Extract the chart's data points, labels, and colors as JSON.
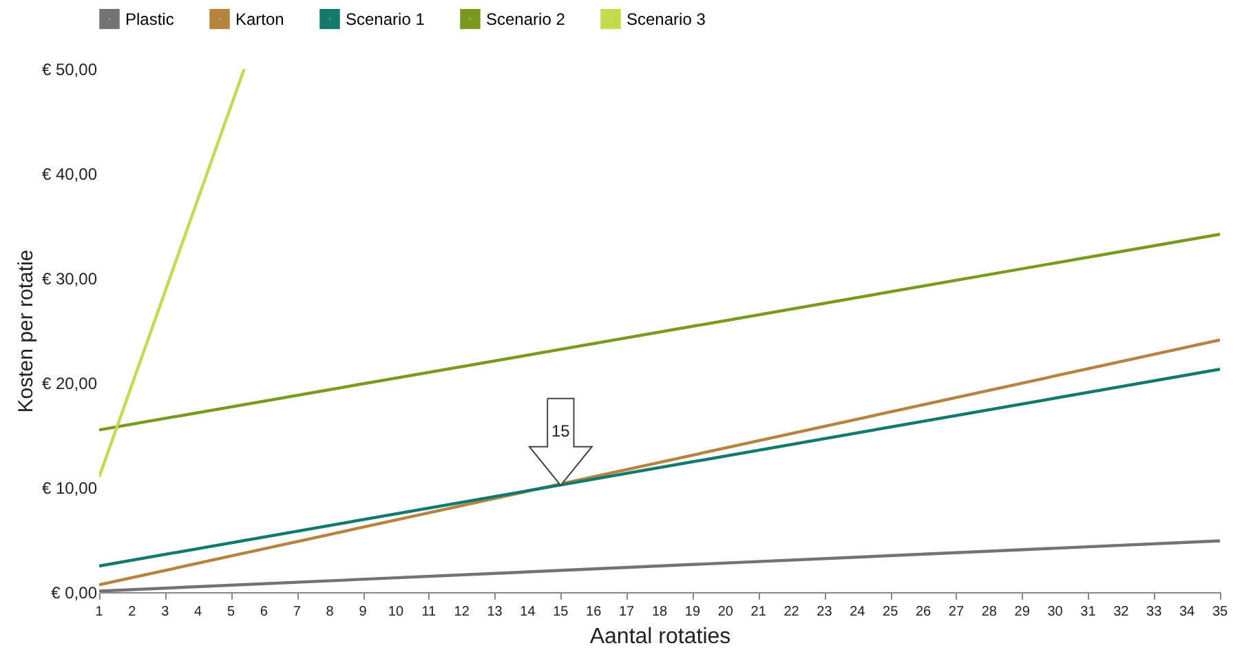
{
  "chart_data": {
    "type": "line",
    "xlabel": "Aantal rotaties",
    "ylabel": "Kosten per rotatie",
    "xlim": [
      1,
      35
    ],
    "xticks": [
      1,
      2,
      3,
      4,
      5,
      6,
      7,
      8,
      9,
      10,
      11,
      12,
      13,
      14,
      15,
      16,
      17,
      18,
      19,
      20,
      21,
      22,
      23,
      24,
      25,
      26,
      27,
      28,
      29,
      30,
      31,
      32,
      33,
      34,
      35
    ],
    "ylim": [
      0,
      50
    ],
    "yticks": [
      {
        "value": 0,
        "label": "€ 0,00"
      },
      {
        "value": 10,
        "label": "€ 10,00"
      },
      {
        "value": 20,
        "label": "€ 20,00"
      },
      {
        "value": 30,
        "label": "€ 30,00"
      },
      {
        "value": 40,
        "label": "€ 40,00"
      },
      {
        "value": 50,
        "label": "€ 50,00"
      }
    ],
    "grid": false,
    "legend": "top",
    "marker": "none",
    "line_style": "solid",
    "series": [
      {
        "name": "Plastic",
        "color": "#737373",
        "x": [
          1,
          35
        ],
        "values": [
          0.1,
          4.9
        ]
      },
      {
        "name": "Karton",
        "color": "#b5843e",
        "x": [
          1,
          35
        ],
        "values": [
          0.7,
          24.1
        ]
      },
      {
        "name": "Scenario 1",
        "color": "#127a6c",
        "x": [
          1,
          35
        ],
        "values": [
          2.5,
          21.3
        ]
      },
      {
        "name": "Scenario 2",
        "color": "#7a9a1e",
        "x": [
          1,
          35
        ],
        "values": [
          15.5,
          34.2
        ]
      },
      {
        "name": "Scenario 3",
        "color": "#c2dc4e",
        "x": [
          1,
          5.4
        ],
        "values": [
          11,
          50
        ]
      }
    ],
    "annotations": [
      {
        "text": "15",
        "x": 15,
        "y": 10.2
      }
    ]
  }
}
